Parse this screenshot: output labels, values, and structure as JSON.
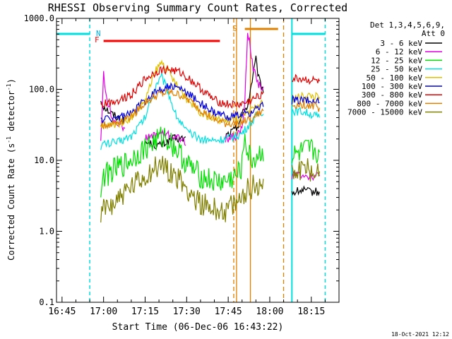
{
  "chart_data": {
    "type": "line",
    "title": "RHESSI Observing Summary Count Rates, Corrected",
    "xlabel": "Start Time (06-Dec-06 16:43:22)",
    "ylabel_main": "Corrected Count Rate (s",
    "ylabel_sup1": "-1",
    "ylabel_mid": " detector",
    "ylabel_sup2": "-1",
    "ylabel_end": ")",
    "yscale": "log",
    "ylim": [
      0.1,
      1000
    ],
    "xlim_minutes": [
      "16:43",
      "18:25"
    ],
    "y_ticks": [
      {
        "v": 0.1,
        "label": "0.1"
      },
      {
        "v": 1,
        "label": "1.0"
      },
      {
        "v": 10,
        "label": "10.0"
      },
      {
        "v": 100,
        "label": "100.0"
      },
      {
        "v": 1000,
        "label": "1000.0"
      }
    ],
    "x_ticks": [
      {
        "t": "16:45",
        "label": "16:45"
      },
      {
        "t": "17:00",
        "label": "17:00"
      },
      {
        "t": "17:15",
        "label": "17:15"
      },
      {
        "t": "17:30",
        "label": "17:30"
      },
      {
        "t": "17:45",
        "label": "17:45"
      },
      {
        "t": "18:00",
        "label": "18:00"
      },
      {
        "t": "18:15",
        "label": "18:15"
      }
    ],
    "legend_header": [
      "Det 1,3,4,5,6,9,",
      "Att 0"
    ],
    "legend_placement": "top-right",
    "series": [
      {
        "name": "3 - 6 keV",
        "color": "#000000",
        "t": [
          "16:59",
          "17:00",
          "17:03",
          "17:08",
          "17:15",
          "17:20",
          "17:25",
          "17:30",
          "17:37",
          "17:44",
          "17:48",
          "17:50",
          "17:52",
          "17:55",
          "17:56",
          "17:57",
          "17:58",
          "18:08",
          "18:12",
          "18:14",
          "18:18"
        ],
        "v": [
          70,
          58,
          45,
          35,
          18,
          16,
          20,
          20,
          18,
          22,
          28,
          45,
          60,
          260,
          140,
          110,
          95,
          3.5,
          3.8,
          3.6,
          3.6
        ]
      },
      {
        "name": "6 - 12 keV",
        "color": "#e000e0",
        "t": [
          "16:59",
          "17:00",
          "17:01",
          "17:03",
          "17:08",
          "17:15",
          "17:20",
          "17:25",
          "17:30",
          "17:37",
          "17:44",
          "17:48",
          "17:50",
          "17:51",
          "17:52",
          "17:54",
          "17:56",
          "17:58",
          "18:08",
          "18:12",
          "18:14",
          "18:18"
        ],
        "v": [
          20,
          160,
          80,
          40,
          28,
          20,
          24,
          22,
          18,
          18,
          20,
          22,
          28,
          65,
          700,
          200,
          120,
          100,
          6,
          6.5,
          6,
          6
        ]
      },
      {
        "name": "12 - 25 keV",
        "color": "#00e000",
        "t": [
          "16:59",
          "17:00",
          "17:03",
          "17:08",
          "17:13",
          "17:18",
          "17:22",
          "17:26",
          "17:30",
          "17:35",
          "17:40",
          "17:44",
          "17:48",
          "17:50",
          "17:51",
          "17:52",
          "17:54",
          "17:56",
          "17:58",
          "18:08",
          "18:12",
          "18:14",
          "18:18"
        ],
        "v": [
          4,
          6,
          7,
          9,
          13,
          18,
          22,
          15,
          9,
          6,
          5,
          5,
          6,
          8,
          25,
          12,
          10,
          12,
          14,
          11,
          13,
          14,
          13
        ]
      },
      {
        "name": "25 - 50 keV",
        "color": "#00e0e0",
        "t": [
          "16:59",
          "17:00",
          "17:05",
          "17:10",
          "17:15",
          "17:19",
          "17:21",
          "17:23",
          "17:26",
          "17:30",
          "17:35",
          "17:40",
          "17:44",
          "17:48",
          "17:50",
          "17:52",
          "17:56",
          "17:58",
          "18:08",
          "18:12",
          "18:14",
          "18:18"
        ],
        "v": [
          16,
          17,
          18,
          22,
          40,
          120,
          150,
          100,
          45,
          25,
          20,
          19,
          20,
          22,
          24,
          30,
          45,
          50,
          50,
          48,
          46,
          40
        ]
      },
      {
        "name": "50 - 100 keV",
        "color": "#e0c000",
        "t": [
          "16:59",
          "17:00",
          "17:05",
          "17:10",
          "17:15",
          "17:19",
          "17:21",
          "17:23",
          "17:26",
          "17:30",
          "17:35",
          "17:40",
          "17:44",
          "17:48",
          "17:52",
          "17:56",
          "17:58",
          "18:08",
          "18:12",
          "18:14",
          "18:18"
        ],
        "v": [
          28,
          30,
          33,
          40,
          70,
          190,
          240,
          190,
          120,
          75,
          48,
          38,
          36,
          38,
          45,
          60,
          65,
          75,
          80,
          82,
          78
        ]
      },
      {
        "name": "100 - 300 keV",
        "color": "#0000e0",
        "t": [
          "16:59",
          "17:00",
          "17:05",
          "17:10",
          "17:15",
          "17:20",
          "17:24",
          "17:28",
          "17:32",
          "17:36",
          "17:40",
          "17:44",
          "17:48",
          "17:52",
          "17:56",
          "17:58",
          "18:08",
          "18:12",
          "18:14",
          "18:18"
        ],
        "v": [
          37,
          38,
          40,
          45,
          70,
          100,
          110,
          100,
          80,
          60,
          46,
          42,
          42,
          45,
          55,
          60,
          70,
          72,
          70,
          65
        ]
      },
      {
        "name": "300 - 800 keV",
        "color": "#e00000",
        "t": [
          "16:59",
          "17:00",
          "17:05",
          "17:10",
          "17:15",
          "17:20",
          "17:24",
          "17:28",
          "17:32",
          "17:36",
          "17:40",
          "17:44",
          "17:48",
          "17:52",
          "17:56",
          "17:58",
          "18:08",
          "18:12",
          "18:14",
          "18:18"
        ],
        "v": [
          60,
          62,
          70,
          85,
          140,
          185,
          190,
          170,
          130,
          95,
          70,
          62,
          60,
          65,
          80,
          95,
          140,
          140,
          135,
          130
        ]
      },
      {
        "name": "800 - 7000 keV",
        "color": "#e08000",
        "t": [
          "16:59",
          "17:00",
          "17:05",
          "17:10",
          "17:15",
          "17:20",
          "17:24",
          "17:28",
          "17:32",
          "17:36",
          "17:40",
          "17:44",
          "17:48",
          "17:52",
          "17:56",
          "17:58",
          "18:08",
          "18:12",
          "18:14",
          "18:18"
        ],
        "v": [
          30,
          31,
          34,
          42,
          65,
          85,
          90,
          82,
          65,
          48,
          37,
          33,
          33,
          36,
          45,
          50,
          60,
          62,
          60,
          55
        ]
      },
      {
        "name": "7000 - 15000 keV",
        "color": "#808000",
        "t": [
          "16:59",
          "17:00",
          "17:03",
          "17:08",
          "17:13",
          "17:18",
          "17:22",
          "17:26",
          "17:30",
          "17:35",
          "17:40",
          "17:44",
          "17:48",
          "17:50",
          "17:52",
          "17:56",
          "17:58",
          "18:08",
          "18:12",
          "18:14",
          "18:18"
        ],
        "v": [
          1.5,
          2,
          2.5,
          3.5,
          5,
          7.5,
          8.5,
          6,
          4,
          2.5,
          2,
          2,
          2.3,
          3,
          4,
          4.5,
          5,
          7,
          8,
          7.5,
          7
        ]
      }
    ],
    "annotations": [
      {
        "label": "N",
        "color": "#00b0e0"
      },
      {
        "label": "F",
        "color": "#ff0000"
      },
      {
        "label": "S",
        "color": "#e08000"
      }
    ],
    "night_intervals": [
      {
        "start": "16:43",
        "end": "16:55"
      },
      {
        "start": "18:08",
        "end": "18:20"
      }
    ],
    "flare_interval": {
      "start": "17:00",
      "end": "17:42"
    },
    "saa_interval": {
      "start": "17:51",
      "end": "18:03"
    },
    "attenuator_lines": [
      {
        "t": "17:47",
        "style": "dashed",
        "color": "#e08000"
      },
      {
        "t": "17:48",
        "style": "solid",
        "color": "#e08000"
      },
      {
        "t": "17:53",
        "style": "solid",
        "color": "#e08000"
      },
      {
        "t": "18:05",
        "style": "dashed",
        "color": "#e08000"
      }
    ],
    "night_line_color": "#00e0e0",
    "footer_date": "18-Oct-2021 12:12"
  }
}
